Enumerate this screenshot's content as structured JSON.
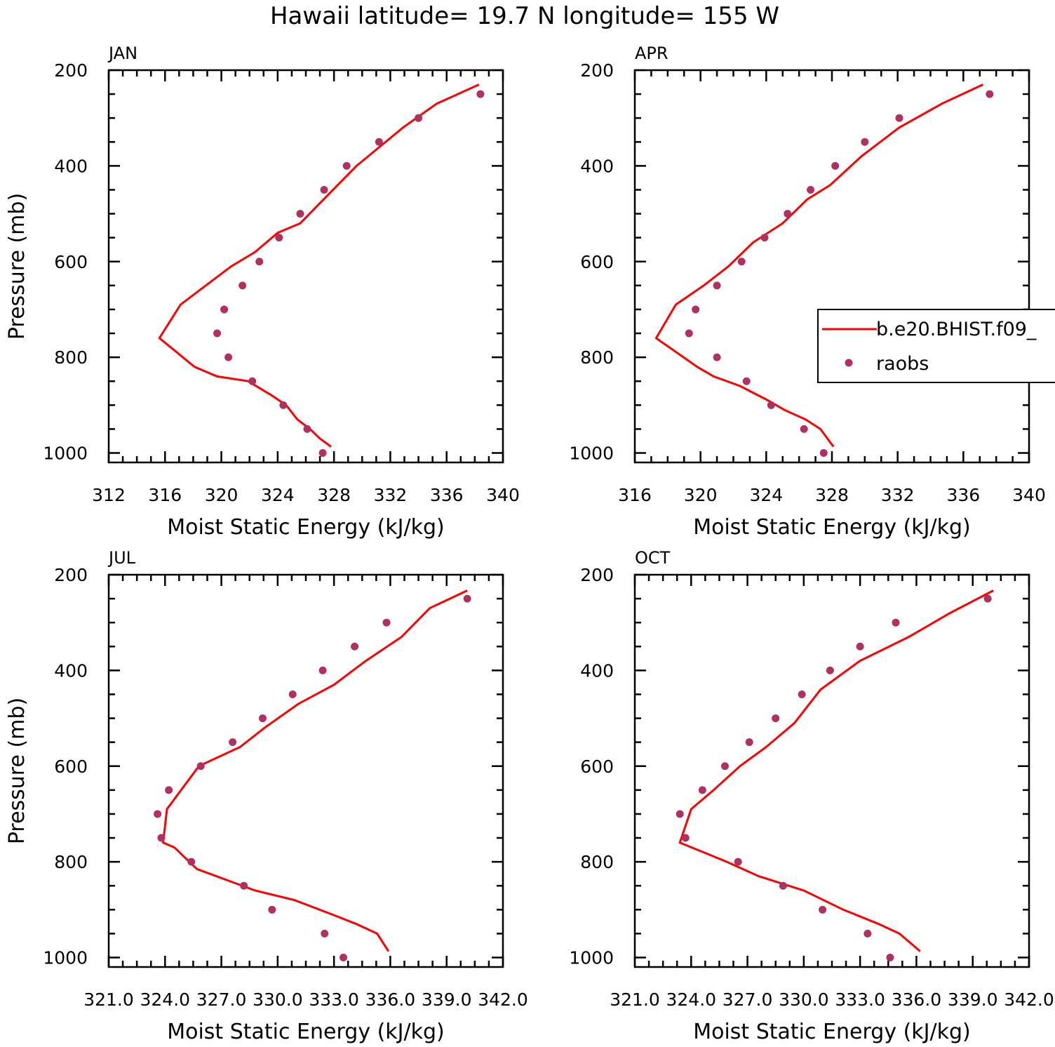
{
  "figure_title": "Hawaii  latitude= 19.7 N longitude= 155 W",
  "colors": {
    "model_line": "#ff0000",
    "raobs_marker": "#b03060",
    "axes": "#000000"
  },
  "legend": {
    "placement": "right side of APR panel",
    "entries": [
      "b.e20.BHIST.f09_",
      "raobs"
    ]
  },
  "chart_data": [
    {
      "type": "line",
      "panel_label": "JAN",
      "xlabel": "Moist Static Energy (kJ/kg)",
      "ylabel": "Pressure (mb)",
      "xlim": [
        312,
        340
      ],
      "ylim": [
        200,
        1000
      ],
      "y_inverted": true,
      "xticks": [
        312,
        316,
        320,
        324,
        328,
        332,
        336,
        340
      ],
      "xtick_labels": [
        "312",
        "316",
        "320",
        "324",
        "328",
        "332",
        "336",
        "340"
      ],
      "yticks": [
        200,
        400,
        600,
        800,
        1000
      ],
      "ytick_labels": [
        "200",
        "400",
        "600",
        "800",
        "1000"
      ],
      "series": [
        {
          "name": "b.e20.BHIST.f09_",
          "style": "line",
          "x": [
            327.8,
            327.0,
            326.3,
            325.4,
            324.6,
            323.6,
            321.9,
            319.7,
            318.1,
            315.6,
            317.1,
            318.9,
            320.7,
            322.4,
            324.0,
            325.6,
            327.6,
            329.6,
            332.9,
            335.3,
            338.3
          ],
          "y": [
            987,
            970,
            950,
            930,
            900,
            880,
            850,
            840,
            820,
            760,
            690,
            650,
            610,
            580,
            540,
            520,
            460,
            400,
            320,
            270,
            230
          ]
        },
        {
          "name": "raobs",
          "style": "marker",
          "x": [
            327.2,
            326.1,
            324.4,
            322.2,
            320.5,
            319.7,
            320.2,
            321.5,
            322.7,
            324.1,
            325.6,
            327.3,
            328.9,
            331.2,
            334.0,
            338.4
          ],
          "y": [
            1000,
            950,
            900,
            850,
            800,
            750,
            700,
            650,
            600,
            550,
            500,
            450,
            400,
            350,
            300,
            250
          ]
        }
      ]
    },
    {
      "type": "line",
      "panel_label": "APR",
      "xlabel": "Moist Static Energy (kJ/kg)",
      "ylabel": "",
      "xlim": [
        316,
        340
      ],
      "ylim": [
        200,
        1000
      ],
      "y_inverted": true,
      "xticks": [
        316,
        320,
        324,
        328,
        332,
        336,
        340
      ],
      "xtick_labels": [
        "316",
        "320",
        "324",
        "328",
        "332",
        "336",
        "340"
      ],
      "yticks": [
        200,
        400,
        600,
        800,
        1000
      ],
      "ytick_labels": [
        "200",
        "400",
        "600",
        "800",
        "1000"
      ],
      "series": [
        {
          "name": "b.e20.BHIST.f09_",
          "style": "line",
          "x": [
            328.1,
            327.3,
            326.4,
            325.1,
            324.1,
            322.4,
            320.8,
            319.8,
            317.3,
            318.5,
            320.2,
            321.7,
            323.2,
            325.0,
            326.5,
            327.9,
            329.8,
            332.1,
            334.7,
            337.2
          ],
          "y": [
            987,
            950,
            930,
            910,
            890,
            860,
            840,
            820,
            760,
            690,
            650,
            610,
            560,
            520,
            470,
            440,
            380,
            320,
            270,
            230
          ]
        },
        {
          "name": "raobs",
          "style": "marker",
          "x": [
            327.5,
            326.3,
            324.3,
            322.8,
            321.0,
            319.3,
            319.7,
            321.0,
            322.5,
            323.9,
            325.3,
            326.7,
            328.2,
            330.0,
            332.1,
            337.6
          ],
          "y": [
            1000,
            950,
            900,
            850,
            800,
            750,
            700,
            650,
            600,
            550,
            500,
            450,
            400,
            350,
            300,
            250
          ]
        }
      ]
    },
    {
      "type": "line",
      "panel_label": "JUL",
      "xlabel": "Moist Static Energy (kJ/kg)",
      "ylabel": "Pressure (mb)",
      "xlim": [
        321.0,
        342.0
      ],
      "ylim": [
        200,
        1000
      ],
      "y_inverted": true,
      "xticks": [
        321,
        324,
        327,
        330,
        333,
        336,
        339,
        342
      ],
      "xtick_labels": [
        "321.0",
        "324.0",
        "327.0",
        "330.0",
        "333.0",
        "336.0",
        "339.0",
        "342.0"
      ],
      "yticks": [
        200,
        400,
        600,
        800,
        1000
      ],
      "ytick_labels": [
        "200",
        "400",
        "600",
        "800",
        "1000"
      ],
      "series": [
        {
          "name": "b.e20.BHIST.f09_",
          "style": "line",
          "x": [
            335.9,
            335.3,
            334.2,
            332.9,
            330.9,
            328.8,
            325.7,
            324.5,
            323.9,
            324.1,
            325.8,
            328.0,
            329.3,
            331.1,
            333.0,
            334.7,
            336.6,
            338.1,
            340.1
          ],
          "y": [
            987,
            950,
            930,
            910,
            880,
            860,
            815,
            770,
            760,
            690,
            600,
            560,
            520,
            470,
            430,
            380,
            330,
            270,
            233
          ]
        },
        {
          "name": "raobs",
          "style": "marker",
          "x": [
            333.5,
            332.5,
            329.7,
            328.2,
            325.4,
            323.8,
            323.6,
            324.2,
            325.9,
            327.6,
            329.2,
            330.8,
            332.4,
            334.1,
            335.8,
            340.1
          ],
          "y": [
            1000,
            950,
            900,
            850,
            800,
            750,
            700,
            650,
            600,
            550,
            500,
            450,
            400,
            350,
            300,
            250
          ]
        }
      ]
    },
    {
      "type": "line",
      "panel_label": "OCT",
      "xlabel": "Moist Static Energy (kJ/kg)",
      "ylabel": "",
      "xlim": [
        321.0,
        342.0
      ],
      "ylim": [
        200,
        1000
      ],
      "y_inverted": true,
      "xticks": [
        321,
        324,
        327,
        330,
        333,
        336,
        339,
        342
      ],
      "xtick_labels": [
        "321.0",
        "324.0",
        "327.0",
        "330.0",
        "333.0",
        "336.0",
        "339.0",
        "342.0"
      ],
      "yticks": [
        200,
        400,
        600,
        800,
        1000
      ],
      "ytick_labels": [
        "200",
        "400",
        "600",
        "800",
        "1000"
      ],
      "series": [
        {
          "name": "b.e20.BHIST.f09_",
          "style": "line",
          "x": [
            336.2,
            335.1,
            334.0,
            332.1,
            330.0,
            327.6,
            325.9,
            323.4,
            324.0,
            325.2,
            326.6,
            328.0,
            329.5,
            330.9,
            333.0,
            335.6,
            337.8,
            340.1
          ],
          "y": [
            987,
            950,
            930,
            900,
            860,
            830,
            800,
            760,
            690,
            650,
            600,
            560,
            510,
            440,
            380,
            330,
            280,
            233
          ]
        },
        {
          "name": "raobs",
          "style": "marker",
          "x": [
            334.6,
            333.4,
            331.0,
            328.9,
            326.5,
            323.7,
            323.4,
            324.6,
            325.8,
            327.1,
            328.5,
            329.9,
            331.4,
            333.0,
            334.9,
            339.8
          ],
          "y": [
            1000,
            950,
            900,
            850,
            800,
            750,
            700,
            650,
            600,
            550,
            500,
            450,
            400,
            350,
            300,
            250
          ]
        }
      ]
    }
  ]
}
